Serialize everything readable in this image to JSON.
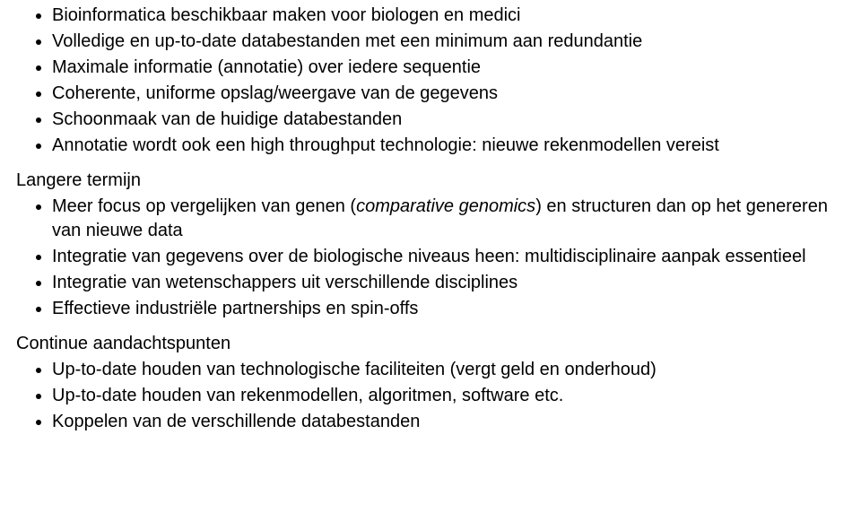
{
  "list1": [
    "Bioinformatica beschikbaar maken voor biologen en medici",
    "Volledige en up-to-date databestanden met een minimum aan redundantie",
    "Maximale informatie (annotatie) over iedere sequentie",
    "Coherente, uniforme opslag/weergave van de gegevens",
    "Schoonmaak van de huidige databestanden",
    "Annotatie wordt ook een high throughput technologie: nieuwe rekenmodellen vereist"
  ],
  "heading2": "Langere termijn",
  "list2_item1_pre": "Meer focus op vergelijken van genen (",
  "list2_item1_italic": "comparative genomics",
  "list2_item1_post": ") en structuren dan op het genereren van nieuwe data",
  "list2_rest": [
    "Integratie van gegevens over de biologische niveaus heen: multidisciplinaire aanpak essentieel",
    "Integratie van wetenschappers uit verschillende disciplines",
    "Effectieve industriële partnerships en spin-offs"
  ],
  "heading3": "Continue aandachtspunten",
  "list3": [
    "Up-to-date houden van technologische faciliteiten (vergt geld en onderhoud)",
    "Up-to-date houden van rekenmodellen, algoritmen, software etc.",
    "Koppelen van de verschillende databestanden"
  ]
}
